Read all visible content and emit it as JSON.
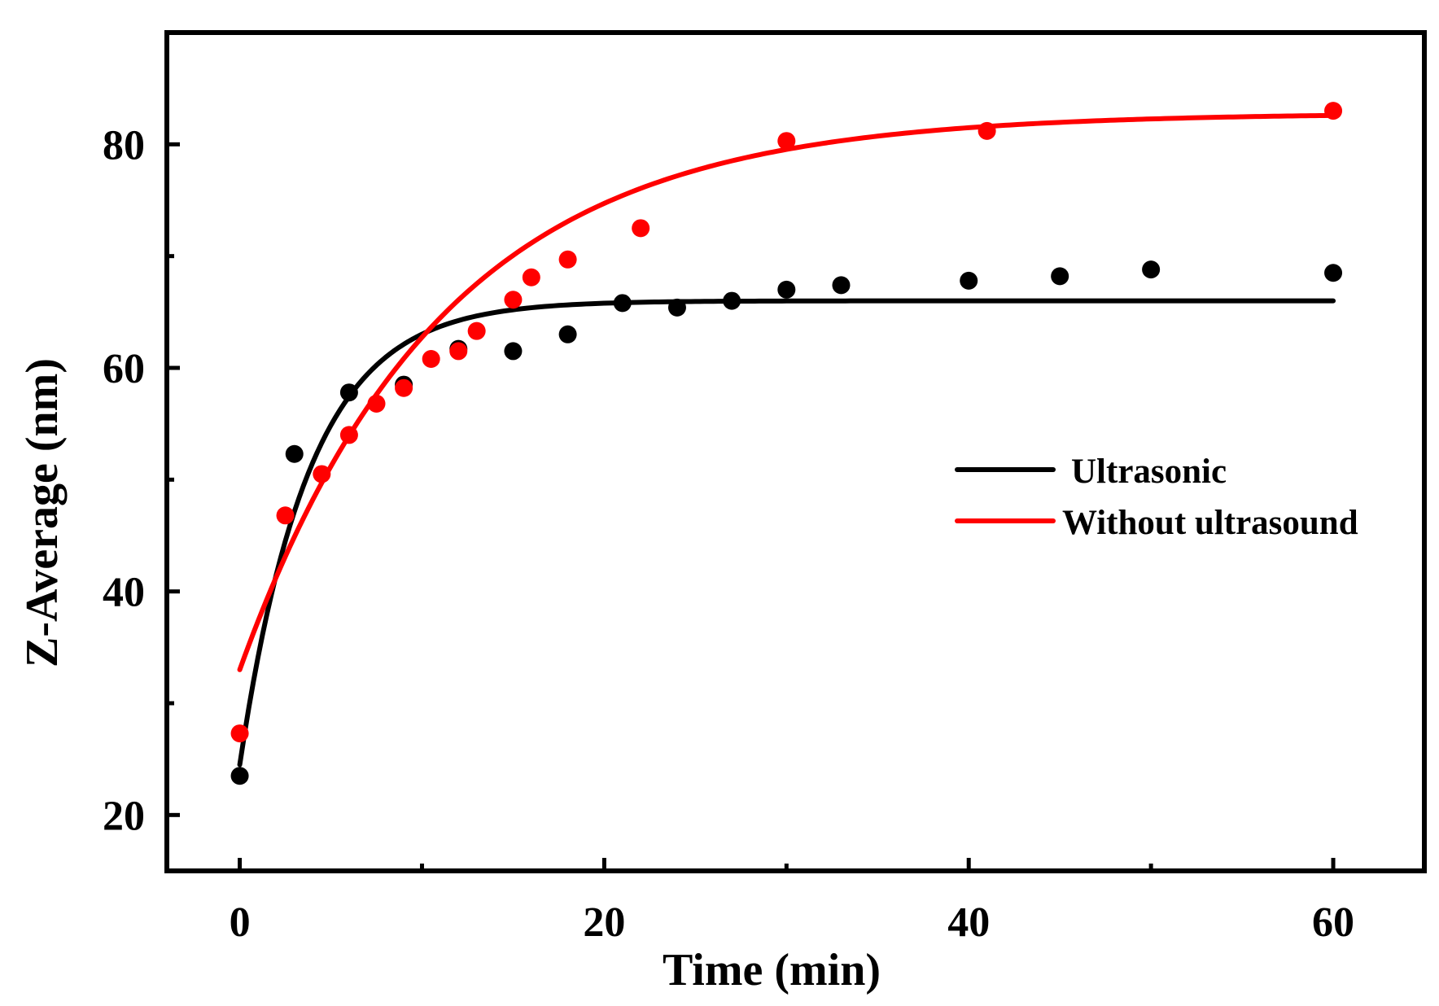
{
  "chart_data": {
    "type": "scatter",
    "title": "",
    "xlabel": "Time (min)",
    "ylabel": "Z-Average (nm)",
    "xlim": [
      -4,
      65
    ],
    "ylim": [
      15,
      90
    ],
    "xticks_major": [
      0,
      20,
      40,
      60
    ],
    "xticks_minor": [
      10,
      30,
      50
    ],
    "yticks_major": [
      20,
      40,
      60,
      80
    ],
    "yticks_minor": [
      30,
      50,
      70
    ],
    "grid": false,
    "legend_position": "center-right",
    "series": [
      {
        "name": "Ultrasonic",
        "color": "#000000",
        "x": [
          0,
          3,
          6,
          9,
          12,
          15,
          18,
          21,
          24,
          27,
          30,
          33,
          40,
          45,
          50,
          60
        ],
        "y": [
          23.5,
          52.3,
          57.8,
          58.5,
          61.7,
          61.5,
          63.0,
          65.8,
          65.4,
          66.0,
          67.0,
          67.4,
          67.8,
          68.2,
          68.8,
          68.5
        ],
        "fit": {
          "model": "exponential_rise",
          "y0": 24.5,
          "plateau": 66.0,
          "tau": 3.8,
          "x_range": [
            0,
            60
          ]
        }
      },
      {
        "name": "Without ultrasound",
        "color": "#ff0000",
        "x": [
          0,
          2.5,
          4.5,
          6,
          7.5,
          9,
          10.5,
          12,
          13,
          15,
          16,
          18,
          22,
          30,
          41,
          60
        ],
        "y": [
          27.3,
          46.8,
          50.5,
          54.0,
          56.8,
          58.2,
          60.8,
          61.5,
          63.3,
          66.1,
          68.1,
          69.7,
          72.5,
          80.3,
          81.2,
          83.0
        ],
        "fit": {
          "model": "exponential_rise",
          "y0": 33.0,
          "plateau": 82.8,
          "tau": 11.0,
          "x_range": [
            0,
            60
          ]
        }
      }
    ]
  }
}
